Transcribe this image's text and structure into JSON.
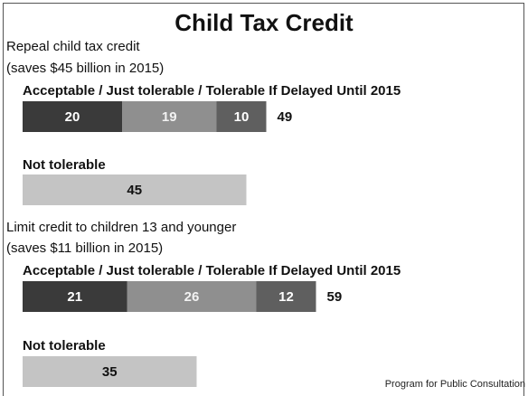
{
  "chart_data": {
    "type": "bar",
    "title": "Child Tax Credit",
    "source": "Program for Public Consultation",
    "acceptable_header": "Acceptable / Just tolerable / Tolerable If Delayed Until 2015",
    "not_tolerable_header": "Not tolerable",
    "series": [
      {
        "name": "Acceptable"
      },
      {
        "name": "Just tolerable"
      },
      {
        "name": "Tolerable If Delayed Until 2015"
      },
      {
        "name": "Not tolerable"
      }
    ],
    "proposals": [
      {
        "line1": "Repeal child tax credit",
        "line2": "(saves $45 billion in 2015)",
        "acceptable": 20,
        "just_tolerable": 19,
        "tolerable_if_delayed": 10,
        "total_tolerable": 49,
        "not_tolerable": 45
      },
      {
        "line1": "Limit credit to children 13 and younger",
        "line2": "(saves $11 billion in 2015)",
        "acceptable": 21,
        "just_tolerable": 26,
        "tolerable_if_delayed": 12,
        "total_tolerable": 59,
        "not_tolerable": 35
      }
    ]
  },
  "colors": {
    "acceptable": "#3a3a3a",
    "just_tolerable": "#8f8f8f",
    "tolerable_if_delayed": "#5f5f5f",
    "not_tolerable": "#c4c4c4",
    "label_on_dark": "#ffffff",
    "label_on_light": "#111111"
  }
}
